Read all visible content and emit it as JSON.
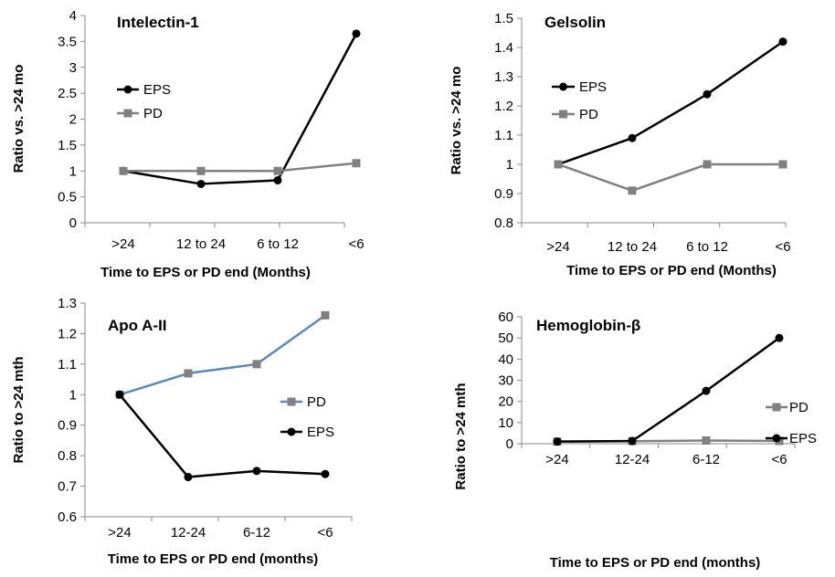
{
  "chart_data": [
    {
      "type": "line",
      "title": "Intelectin-1",
      "xlabel": "Time to EPS or PD end (Months)",
      "ylabel": "Ratio vs. >24 mo",
      "categories": [
        ">24",
        "12 to 24",
        "6 to 12",
        "<6"
      ],
      "ylim": [
        0,
        4
      ],
      "yticks": [
        "0",
        "0.5",
        "1",
        "1.5",
        "2",
        "2.5",
        "3",
        "3.5",
        "4"
      ],
      "series": [
        {
          "name": "EPS",
          "values": [
            1.0,
            0.75,
            0.82,
            3.65
          ],
          "color": "#000000",
          "marker": "circle"
        },
        {
          "name": "PD",
          "values": [
            1.0,
            1.0,
            1.0,
            1.15
          ],
          "color": "#808080",
          "marker": "square"
        }
      ],
      "legend": "left",
      "grid": false
    },
    {
      "type": "line",
      "title": "Gelsolin",
      "xlabel": "Time to EPS or PD end (Months)",
      "ylabel": "Ratio vs. >24 mo",
      "categories": [
        ">24",
        "12 to 24",
        "6 to 12",
        "<6"
      ],
      "ylim": [
        0.8,
        1.5
      ],
      "yticks": [
        "0.8",
        "0.9",
        "1",
        "1.1",
        "1.2",
        "1.3",
        "1.4",
        "1.5"
      ],
      "series": [
        {
          "name": "EPS",
          "values": [
            1.0,
            1.09,
            1.24,
            1.42
          ],
          "color": "#000000",
          "marker": "circle"
        },
        {
          "name": "PD",
          "values": [
            1.0,
            0.91,
            1.0,
            1.0
          ],
          "color": "#808080",
          "marker": "square"
        }
      ],
      "legend": "left",
      "grid": false
    },
    {
      "type": "line",
      "title": "Apo A-II",
      "xlabel": "Time to EPS or PD end (months)",
      "ylabel": "Ratio to >24 mth",
      "categories": [
        ">24",
        "12-24",
        "6-12",
        "<6"
      ],
      "ylim": [
        0.6,
        1.3
      ],
      "yticks": [
        "0.6",
        "0.7",
        "0.8",
        "0.9",
        "1",
        "1.1",
        "1.2",
        "1.3"
      ],
      "series": [
        {
          "name": "PD",
          "values": [
            1.0,
            1.07,
            1.1,
            1.26
          ],
          "color": "#5b87c0",
          "marker": "square",
          "marker_color": "#808080"
        },
        {
          "name": "EPS",
          "values": [
            1.0,
            0.73,
            0.75,
            0.74
          ],
          "color": "#000000",
          "marker": "circle"
        }
      ],
      "legend": "right",
      "grid": false
    },
    {
      "type": "line",
      "title": "Hemoglobin-β",
      "xlabel": "Time to EPS or PD end (months)",
      "ylabel": "Ratio to >24 mth",
      "categories": [
        ">24",
        "12-24",
        "6-12",
        "<6"
      ],
      "ylim": [
        0,
        60
      ],
      "yticks": [
        "0",
        "10",
        "20",
        "30",
        "40",
        "50",
        "60"
      ],
      "series": [
        {
          "name": "PD",
          "values": [
            1.0,
            1.2,
            1.5,
            1.3
          ],
          "color": "#808080",
          "marker": "square"
        },
        {
          "name": "EPS",
          "values": [
            1.0,
            1.3,
            25,
            50
          ],
          "color": "#000000",
          "marker": "circle"
        }
      ],
      "legend": "right",
      "grid": false
    }
  ]
}
